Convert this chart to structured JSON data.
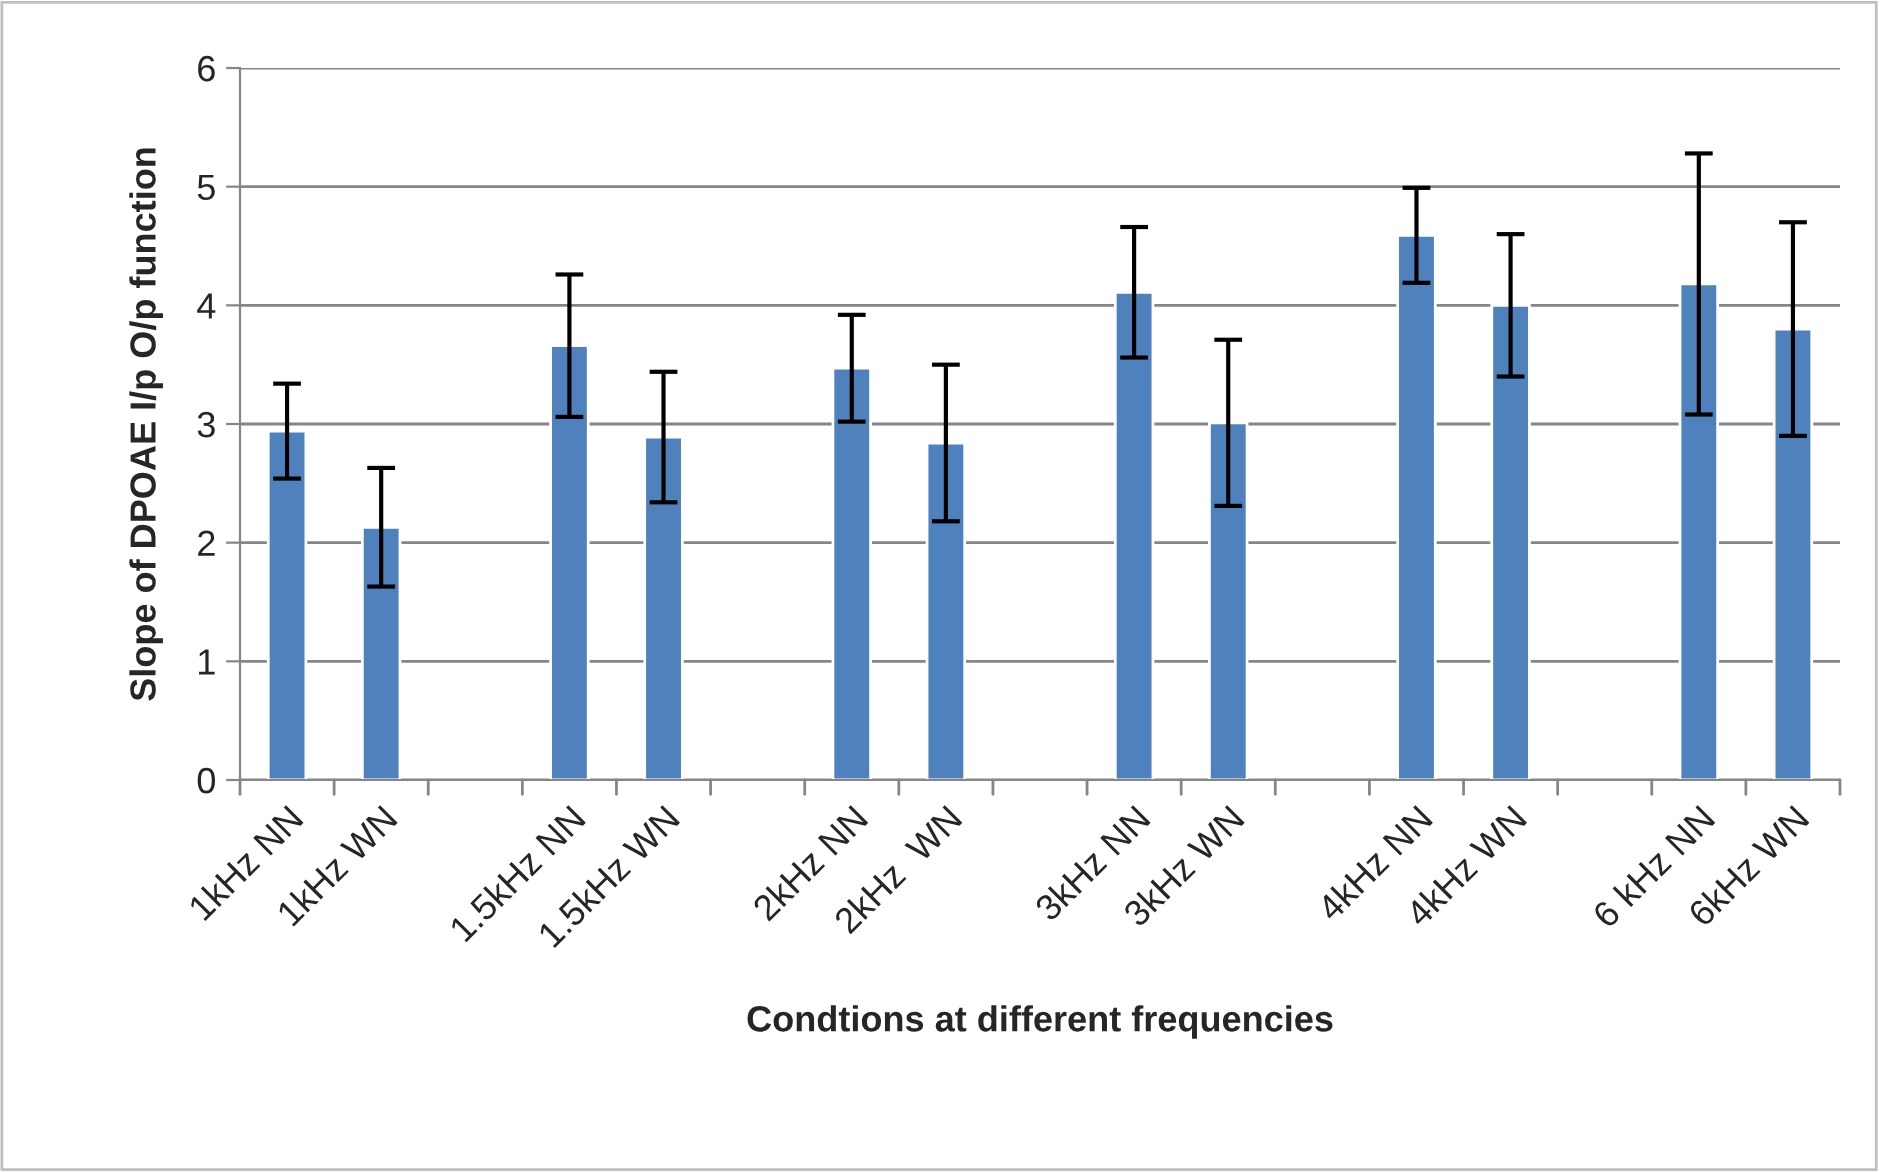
{
  "chart_data": {
    "type": "bar",
    "xlabel": "Condtions at different frequencies",
    "ylabel": "Slope of DPOAE I/p O/p function",
    "categories": [
      "1kHz NN",
      "1kHz WN",
      null,
      "1.5kHz NN",
      "1.5kHz WN",
      null,
      "2kHz NN",
      "2kHz  WN",
      null,
      "3kHz NN",
      "3kHz WN",
      null,
      "4kHz NN",
      "4kHz WN",
      null,
      "6 kHz NN",
      "6kHz WN"
    ],
    "values": [
      2.94,
      2.13,
      null,
      3.66,
      2.89,
      null,
      3.47,
      2.84,
      null,
      4.11,
      3.01,
      null,
      4.59,
      4.0,
      null,
      4.18,
      3.8
    ],
    "errors": [
      0.4,
      0.5,
      null,
      0.6,
      0.55,
      null,
      0.45,
      0.66,
      null,
      0.55,
      0.7,
      null,
      0.4,
      0.6,
      null,
      1.1,
      0.9
    ],
    "color": "#4f81bd",
    "ylim": [
      0,
      6
    ],
    "yticks": [
      0,
      1,
      2,
      3,
      4,
      5,
      6
    ],
    "grid": "y",
    "legend": false
  }
}
